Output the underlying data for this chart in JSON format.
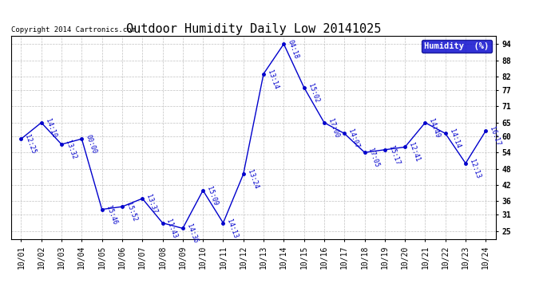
{
  "title": "Outdoor Humidity Daily Low 20141025",
  "copyright": "Copyright 2014 Cartronics.com",
  "legend_label": "Humidity  (%)",
  "x_labels": [
    "10/01",
    "10/02",
    "10/03",
    "10/04",
    "10/05",
    "10/06",
    "10/07",
    "10/08",
    "10/09",
    "10/10",
    "10/11",
    "10/12",
    "10/13",
    "10/14",
    "10/15",
    "10/16",
    "10/17",
    "10/18",
    "10/19",
    "10/20",
    "10/21",
    "10/22",
    "10/23",
    "10/24"
  ],
  "y_values": [
    59,
    65,
    57,
    59,
    33,
    34,
    37,
    28,
    26,
    40,
    28,
    46,
    83,
    94,
    78,
    65,
    61,
    54,
    55,
    56,
    65,
    61,
    50,
    62
  ],
  "time_labels": [
    "12:25",
    "14:10",
    "13:32",
    "00:00",
    "15:46",
    "15:52",
    "13:37",
    "11:43",
    "14:36",
    "15:09",
    "14:13",
    "13:24",
    "13:14",
    "04:18",
    "15:02",
    "17:00",
    "14:07",
    "17:05",
    "15:17",
    "12:41",
    "14:49",
    "14:14",
    "12:13",
    "16:17"
  ],
  "line_color": "#0000cc",
  "marker_color": "#0000cc",
  "background_color": "#ffffff",
  "grid_color": "#bbbbbb",
  "ylim": [
    22,
    97
  ],
  "yticks": [
    25,
    31,
    36,
    42,
    48,
    54,
    60,
    65,
    71,
    77,
    82,
    88,
    94
  ],
  "title_fontsize": 11,
  "legend_bg": "#0000cc",
  "legend_fg": "#ffffff",
  "label_fontsize": 6.0,
  "tick_fontsize": 7.0
}
